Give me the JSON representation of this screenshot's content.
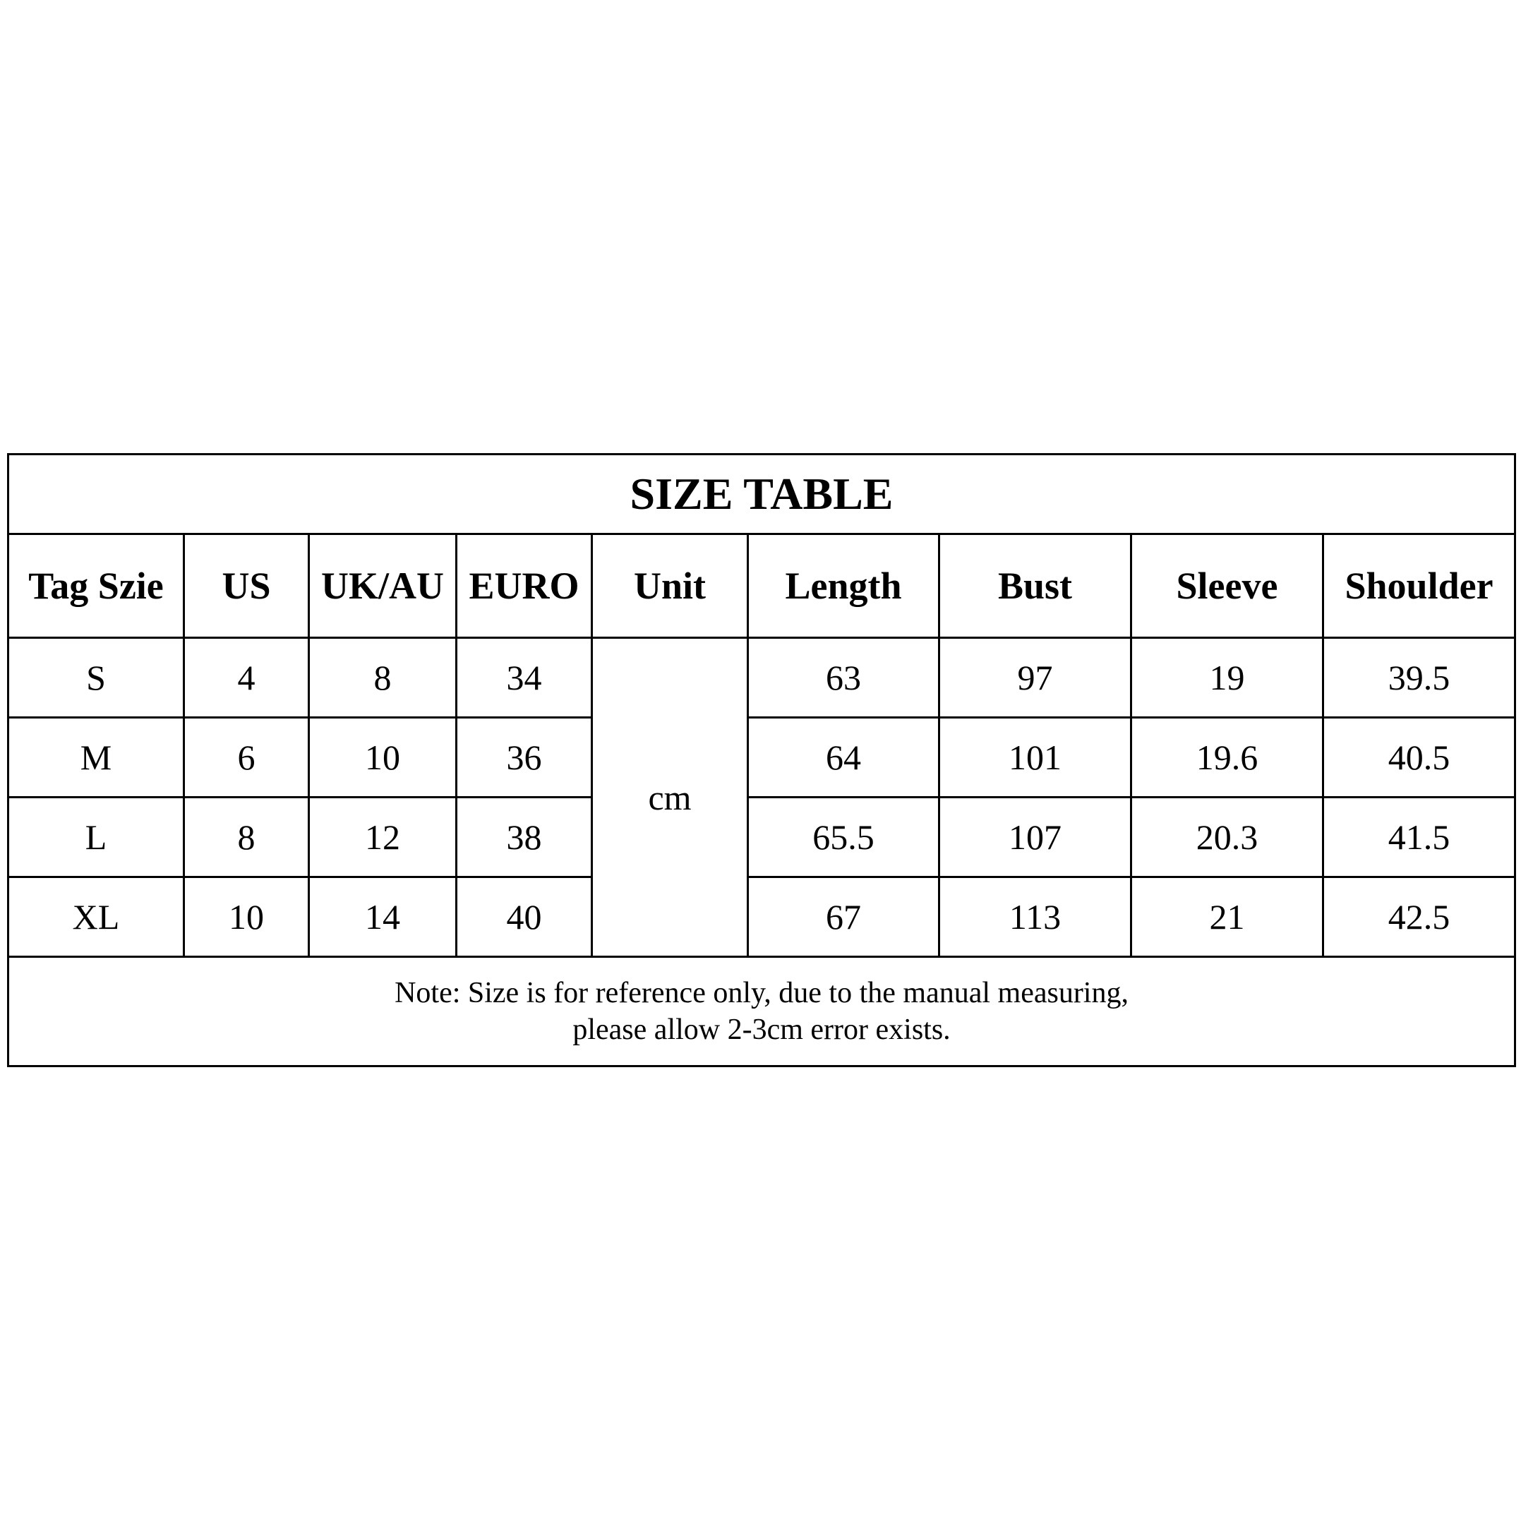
{
  "title": "SIZE TABLE",
  "headers": [
    "Tag Szie",
    "US",
    "UK/AU",
    "EURO",
    "Unit",
    "Length",
    "Bust",
    "Sleeve",
    "Shoulder"
  ],
  "unit": "cm",
  "rows": [
    {
      "tag": "S",
      "us": "4",
      "uk": "8",
      "euro": "34",
      "length": "63",
      "bust": "97",
      "sleeve": "19",
      "shoulder": "39.5"
    },
    {
      "tag": "M",
      "us": "6",
      "uk": "10",
      "euro": "36",
      "length": "64",
      "bust": "101",
      "sleeve": "19.6",
      "shoulder": "40.5"
    },
    {
      "tag": "L",
      "us": "8",
      "uk": "12",
      "euro": "38",
      "length": "65.5",
      "bust": "107",
      "sleeve": "20.3",
      "shoulder": "41.5"
    },
    {
      "tag": "XL",
      "us": "10",
      "uk": "14",
      "euro": "40",
      "length": "67",
      "bust": "113",
      "sleeve": "21",
      "shoulder": "42.5"
    }
  ],
  "note": {
    "line1": "Note: Size is for reference only, due to the manual measuring,",
    "line2": "please allow 2-3cm error exists."
  }
}
